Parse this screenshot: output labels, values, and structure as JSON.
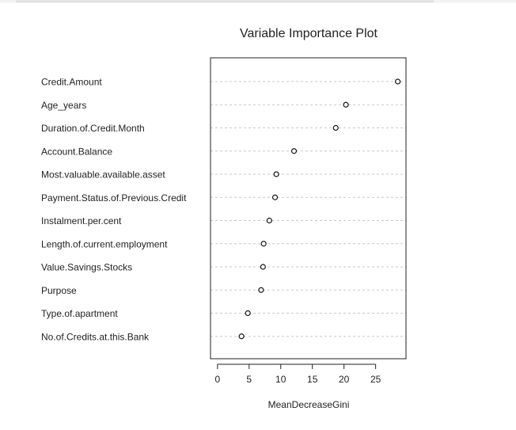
{
  "chart_data": {
    "type": "scatter",
    "title": "Variable Importance Plot",
    "xlabel": "MeanDecreaseGini",
    "ylabel": "",
    "xlim": [
      -1.1,
      29.8
    ],
    "xticks": [
      0,
      5,
      10,
      15,
      20,
      25
    ],
    "grid": "dashed horizontal lines per variable",
    "categories": [
      "Credit.Amount",
      "Age_years",
      "Duration.of.Credit.Month",
      "Account.Balance",
      "Most.valuable.available.asset",
      "Payment.Status.of.Previous.Credit",
      "Instalment.per.cent",
      "Length.of.current.employment",
      "Value.Savings.Stocks",
      "Purpose",
      "Type.of.apartment",
      "No.of.Credits.at.this.Bank"
    ],
    "values": [
      28.5,
      20.3,
      18.7,
      12.1,
      9.3,
      9.1,
      8.2,
      7.3,
      7.2,
      6.9,
      4.8,
      3.8
    ]
  }
}
